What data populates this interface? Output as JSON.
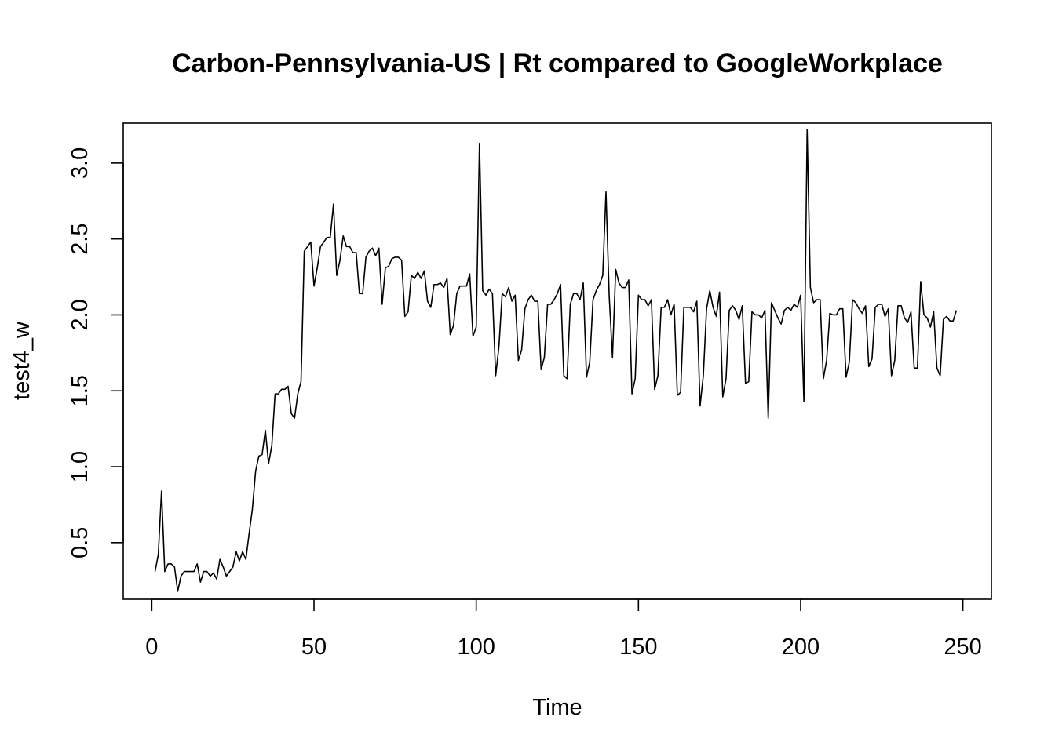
{
  "chart_data": {
    "type": "line",
    "title": "Carbon-Pennsylvania-US | Rt compared to GoogleWorkplace",
    "xlabel": "Time",
    "ylabel": "test4_w",
    "xlim": [
      -8.8,
      258.8
    ],
    "ylim": [
      0.1272,
      3.2628
    ],
    "x_ticks": [
      0,
      50,
      100,
      150,
      200,
      250
    ],
    "y_ticks": [
      0.5,
      1.0,
      1.5,
      2.0,
      2.5,
      3.0
    ],
    "x_tick_labels": [
      "0",
      "50",
      "100",
      "150",
      "200",
      "250"
    ],
    "y_tick_labels": [
      "0.5",
      "1.0",
      "1.5",
      "2.0",
      "2.5",
      "3.0"
    ],
    "grid": false,
    "legend": "none",
    "line_color": "#000000",
    "series": [
      {
        "x_start": 1,
        "values": [
          0.31,
          0.42,
          0.84,
          0.31,
          0.36,
          0.36,
          0.34,
          0.18,
          0.28,
          0.31,
          0.31,
          0.31,
          0.31,
          0.36,
          0.24,
          0.31,
          0.31,
          0.28,
          0.3,
          0.26,
          0.39,
          0.34,
          0.28,
          0.31,
          0.34,
          0.44,
          0.38,
          0.44,
          0.39,
          0.56,
          0.72,
          0.97,
          1.07,
          1.08,
          1.24,
          1.02,
          1.14,
          1.48,
          1.48,
          1.51,
          1.51,
          1.53,
          1.35,
          1.32,
          1.48,
          1.56,
          2.42,
          2.45,
          2.48,
          2.19,
          2.31,
          2.45,
          2.48,
          2.51,
          2.51,
          2.73,
          2.26,
          2.36,
          2.52,
          2.45,
          2.45,
          2.41,
          2.41,
          2.14,
          2.14,
          2.38,
          2.42,
          2.44,
          2.39,
          2.44,
          2.07,
          2.31,
          2.32,
          2.37,
          2.38,
          2.38,
          2.36,
          1.99,
          2.02,
          2.26,
          2.24,
          2.28,
          2.24,
          2.29,
          2.09,
          2.05,
          2.2,
          2.2,
          2.21,
          2.18,
          2.24,
          1.87,
          1.93,
          2.14,
          2.19,
          2.19,
          2.19,
          2.27,
          1.86,
          1.92,
          3.13,
          2.16,
          2.13,
          2.17,
          2.14,
          1.6,
          1.79,
          2.14,
          2.12,
          2.18,
          2.09,
          2.13,
          1.7,
          1.77,
          2.04,
          2.1,
          2.13,
          2.09,
          2.09,
          1.64,
          1.72,
          2.07,
          2.07,
          2.1,
          2.14,
          2.2,
          1.6,
          1.58,
          2.07,
          2.14,
          2.14,
          2.1,
          2.21,
          1.59,
          1.69,
          2.1,
          2.16,
          2.2,
          2.26,
          2.81,
          2.12,
          1.72,
          2.3,
          2.21,
          2.18,
          2.18,
          2.23,
          1.48,
          1.58,
          2.13,
          2.1,
          2.1,
          2.06,
          2.1,
          1.51,
          1.6,
          2.05,
          2.05,
          2.1,
          2.0,
          2.07,
          1.47,
          1.49,
          2.05,
          2.05,
          2.05,
          2.02,
          2.09,
          1.4,
          1.6,
          2.04,
          2.16,
          2.05,
          1.99,
          2.15,
          1.46,
          1.58,
          2.03,
          2.06,
          2.03,
          1.97,
          2.06,
          1.55,
          1.56,
          2.02,
          2.0,
          2.0,
          1.98,
          2.03,
          1.32,
          2.08,
          2.03,
          1.98,
          1.94,
          2.03,
          2.05,
          2.03,
          2.07,
          2.05,
          2.13,
          1.43,
          3.22,
          2.18,
          2.08,
          2.1,
          2.1,
          1.58,
          1.7,
          2.01,
          2.0,
          2.0,
          2.04,
          2.04,
          1.59,
          1.69,
          2.1,
          2.08,
          2.04,
          2.01,
          2.06,
          1.66,
          1.71,
          2.05,
          2.07,
          2.07,
          1.99,
          2.04,
          1.6,
          1.7,
          2.06,
          2.06,
          1.98,
          1.95,
          2.02,
          1.65,
          1.65,
          2.22,
          2.0,
          1.98,
          1.92,
          2.02,
          1.65,
          1.6,
          1.97,
          1.99,
          1.96,
          1.96,
          2.03
        ]
      }
    ]
  }
}
